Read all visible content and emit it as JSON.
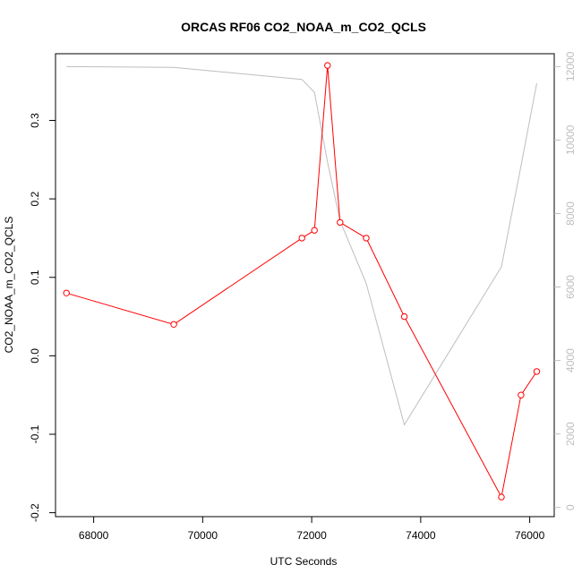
{
  "chart_data": {
    "type": "line",
    "title": "ORCAS RF06 CO2_NOAA_m_CO2_QCLS",
    "xlabel": "UTC Seconds",
    "ylabel": "CO2_NOAA_m_CO2_QCLS",
    "xlim": [
      67300,
      76450
    ],
    "ylim": [
      -0.205,
      0.385
    ],
    "y2lim": [
      -250,
      12350
    ],
    "x_ticks": [
      68000,
      70000,
      72000,
      74000,
      76000
    ],
    "y_ticks": [
      -0.2,
      -0.1,
      0.0,
      0.1,
      0.2,
      0.3
    ],
    "y_tick_labels": [
      "-0.2",
      "-0.1",
      "0.0",
      "0.1",
      "0.2",
      "0.3"
    ],
    "y2_ticks": [
      0,
      2000,
      4000,
      6000,
      8000,
      10000,
      12000
    ],
    "grid": false,
    "legend": "none",
    "colors": {
      "primary": "#ff0000",
      "secondary": "#bebebe"
    },
    "series": [
      {
        "axis": "left",
        "style": "line+points",
        "color": "#ff0000",
        "x": [
          67500,
          69470,
          71820,
          72050,
          72290,
          72520,
          73000,
          73700,
          75480,
          75840,
          76130
        ],
        "y": [
          0.08,
          0.04,
          0.15,
          0.16,
          0.37,
          0.17,
          0.15,
          0.05,
          -0.18,
          -0.05,
          -0.02
        ]
      },
      {
        "axis": "right",
        "style": "line",
        "color": "#bebebe",
        "x": [
          67500,
          69470,
          71820,
          72050,
          72290,
          72520,
          73000,
          73700,
          75480,
          75840,
          76130
        ],
        "y": [
          12000,
          11980,
          11650,
          11300,
          9400,
          7800,
          6100,
          2250,
          6550,
          9300,
          11550
        ]
      }
    ]
  }
}
